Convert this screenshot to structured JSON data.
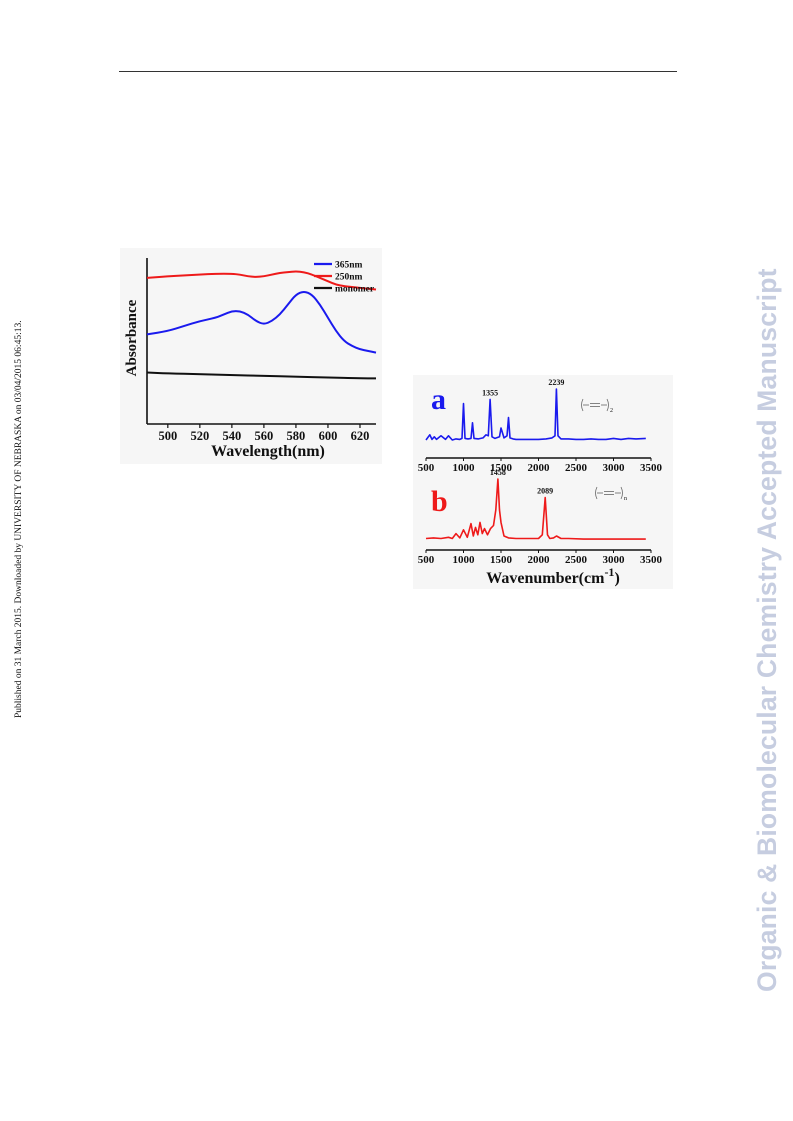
{
  "page": {
    "side_note": "Published on 31 March 2015. Downloaded by UNIVERSITY OF NEBRASKA on 03/04/2015 06:45:13.",
    "watermark": "Organic & Biomolecular Chemistry Accepted Manuscript"
  },
  "chart_data": [
    {
      "type": "line",
      "xlabel": "Wavelength(nm)",
      "ylabel": "Absorbance",
      "xlim": [
        487,
        630
      ],
      "ylim": [
        0,
        1
      ],
      "xticks": [
        500,
        520,
        540,
        560,
        580,
        600,
        620
      ],
      "legend_position": "top-right",
      "series": [
        {
          "name": "365nm",
          "color": "#1a1aee",
          "x": [
            487,
            500,
            510,
            520,
            530,
            535,
            540,
            545,
            550,
            555,
            560,
            565,
            570,
            575,
            580,
            585,
            590,
            595,
            600,
            605,
            610,
            615,
            620,
            625,
            630
          ],
          "y": [
            0.54,
            0.56,
            0.59,
            0.62,
            0.64,
            0.66,
            0.68,
            0.68,
            0.66,
            0.62,
            0.6,
            0.62,
            0.66,
            0.72,
            0.78,
            0.8,
            0.78,
            0.72,
            0.64,
            0.56,
            0.5,
            0.47,
            0.45,
            0.44,
            0.43
          ]
        },
        {
          "name": "250nm",
          "color": "#ee1a1a",
          "x": [
            487,
            500,
            510,
            520,
            530,
            540,
            545,
            550,
            555,
            560,
            565,
            570,
            575,
            580,
            585,
            590,
            595,
            600,
            605,
            610,
            620,
            630
          ],
          "y": [
            0.88,
            0.89,
            0.895,
            0.9,
            0.905,
            0.905,
            0.9,
            0.89,
            0.885,
            0.89,
            0.9,
            0.91,
            0.915,
            0.92,
            0.915,
            0.9,
            0.88,
            0.86,
            0.84,
            0.83,
            0.82,
            0.81
          ]
        },
        {
          "name": "monomer",
          "color": "#111111",
          "x": [
            487,
            500,
            520,
            540,
            560,
            580,
            600,
            620,
            630
          ],
          "y": [
            0.31,
            0.305,
            0.3,
            0.295,
            0.29,
            0.285,
            0.28,
            0.275,
            0.275
          ]
        }
      ]
    },
    {
      "type": "line",
      "xlabel": "Wavenumber(cm",
      "xlabel_sup": "-1",
      "xlabel_end": ")",
      "xlim": [
        500,
        3500
      ],
      "xticks": [
        500,
        1000,
        1500,
        2000,
        2500,
        3000,
        3500
      ],
      "panels": [
        {
          "label": "a",
          "color": "#1a1aee",
          "annotations": [
            {
              "text": "1355",
              "x": 1355
            },
            {
              "text": "2239",
              "x": 2239
            }
          ],
          "inset_subscript": "2",
          "baseline_x": [
            500,
            550,
            580,
            610,
            640,
            700,
            760,
            800,
            850,
            900,
            950,
            980,
            1000,
            1020,
            1060,
            1100,
            1120,
            1140,
            1200,
            1260,
            1300,
            1330,
            1355,
            1380,
            1420,
            1480,
            1500,
            1540,
            1580,
            1600,
            1620,
            1660,
            1700,
            1800,
            1900,
            2000,
            2100,
            2180,
            2220,
            2239,
            2260,
            2300,
            2400,
            2500,
            2600,
            2700,
            2800,
            2900,
            3000,
            3100,
            3200,
            3300,
            3430
          ],
          "baseline_y": [
            0.02,
            0.12,
            0.03,
            0.08,
            0.03,
            0.1,
            0.03,
            0.1,
            0.02,
            0.04,
            0.03,
            0.05,
            0.72,
            0.05,
            0.04,
            0.05,
            0.35,
            0.05,
            0.04,
            0.06,
            0.12,
            0.1,
            0.8,
            0.08,
            0.05,
            0.08,
            0.25,
            0.06,
            0.1,
            0.45,
            0.06,
            0.04,
            0.03,
            0.03,
            0.03,
            0.03,
            0.04,
            0.06,
            0.1,
            1.0,
            0.1,
            0.04,
            0.04,
            0.03,
            0.03,
            0.04,
            0.03,
            0.03,
            0.05,
            0.03,
            0.05,
            0.04,
            0.05
          ]
        },
        {
          "label": "b",
          "color": "#ee1a1a",
          "annotations": [
            {
              "text": "1458",
              "x": 1458
            },
            {
              "text": "2089",
              "x": 2089
            }
          ],
          "inset_subscript": "n",
          "baseline_x": [
            500,
            600,
            700,
            800,
            850,
            900,
            950,
            1000,
            1050,
            1100,
            1130,
            1160,
            1190,
            1220,
            1250,
            1280,
            1320,
            1360,
            1400,
            1430,
            1458,
            1480,
            1500,
            1540,
            1600,
            1700,
            1800,
            1900,
            2000,
            2050,
            2089,
            2120,
            2150,
            2200,
            2240,
            2300,
            2400,
            2600,
            2800,
            3000,
            3200,
            3430
          ],
          "baseline_y": [
            0.04,
            0.05,
            0.04,
            0.06,
            0.04,
            0.12,
            0.05,
            0.18,
            0.06,
            0.28,
            0.08,
            0.22,
            0.1,
            0.3,
            0.12,
            0.2,
            0.1,
            0.2,
            0.25,
            0.5,
            1.0,
            0.5,
            0.3,
            0.08,
            0.05,
            0.04,
            0.04,
            0.04,
            0.04,
            0.1,
            0.7,
            0.1,
            0.04,
            0.05,
            0.08,
            0.04,
            0.04,
            0.03,
            0.03,
            0.03,
            0.03,
            0.03
          ]
        }
      ]
    }
  ]
}
